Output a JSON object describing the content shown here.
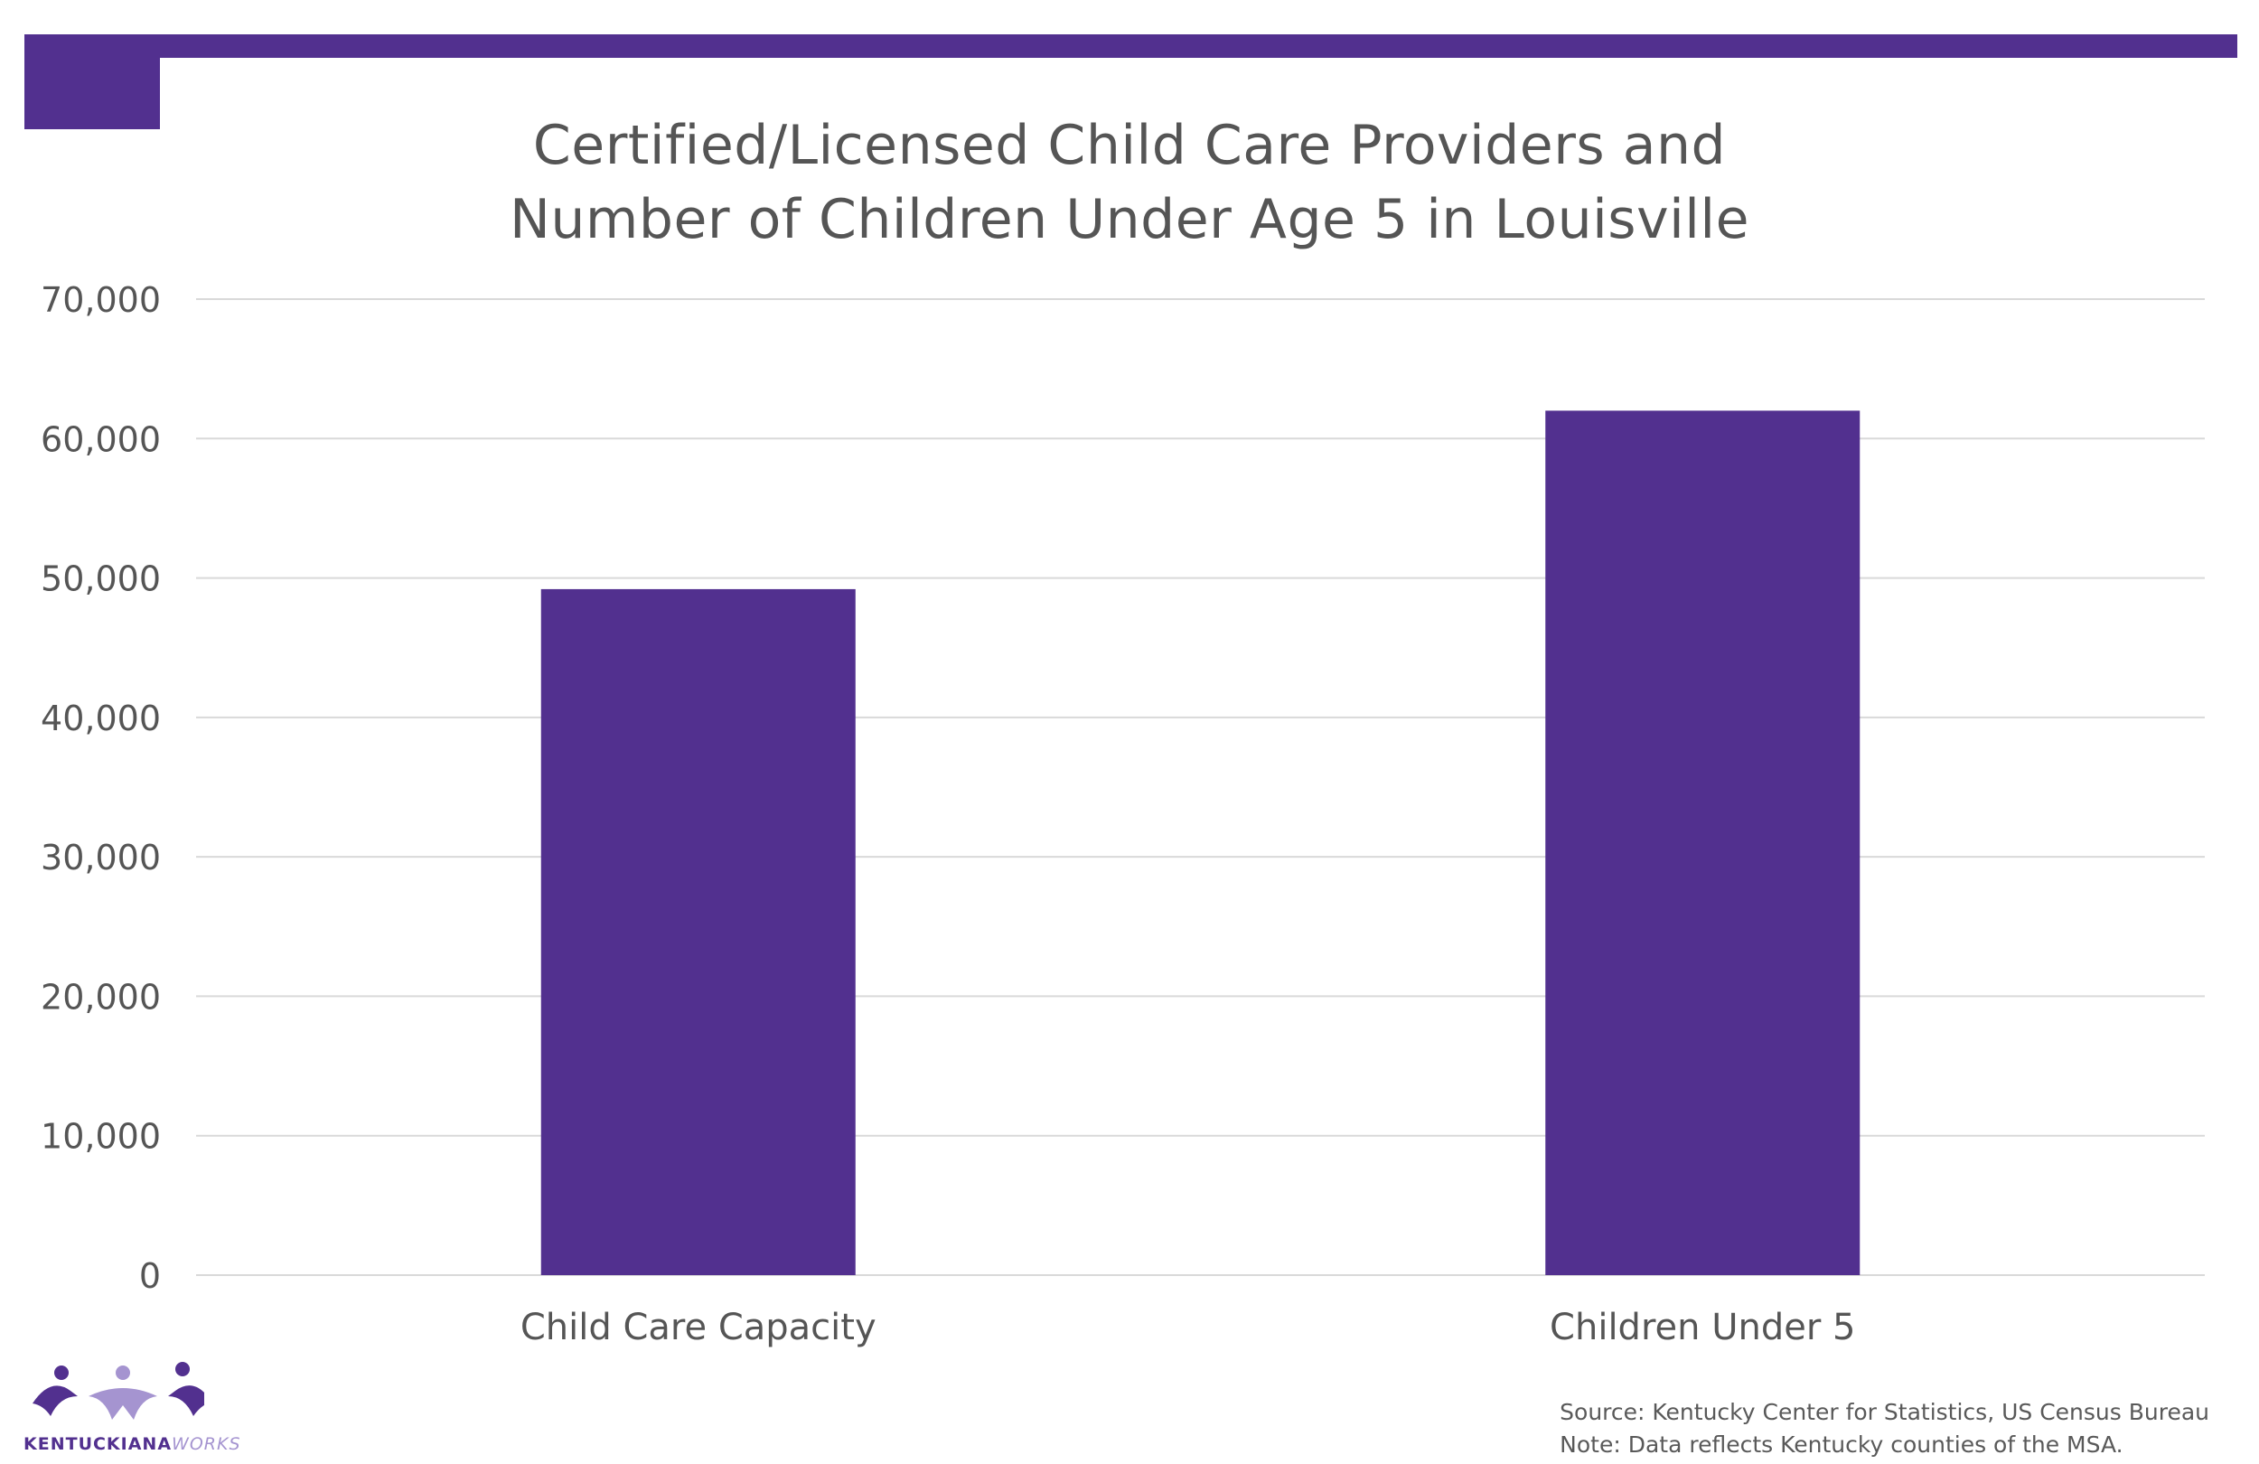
{
  "colors": {
    "accent": "#52308f",
    "text": "#555555",
    "grid": "#d9d9d9",
    "logo_light": "#a594d0"
  },
  "chart_data": {
    "type": "bar",
    "title_lines": [
      "Certified/Licensed Child Care Providers and",
      "Number of Children Under Age 5 in Louisville"
    ],
    "categories": [
      "Child Care Capacity",
      "Children Under 5"
    ],
    "values": [
      49200,
      62000
    ],
    "ylim": [
      0,
      70000
    ],
    "yticks": [
      0,
      10000,
      20000,
      30000,
      40000,
      50000,
      60000,
      70000
    ],
    "ytick_labels": [
      "0",
      "10,000",
      "20,000",
      "30,000",
      "40,000",
      "50,000",
      "60,000",
      "70,000"
    ],
    "grid": true,
    "legend": "none",
    "bar_color": "#52308f"
  },
  "footer": {
    "source": "Source: Kentucky Center for Statistics, US Census Bureau",
    "note": "Note: Data reflects Kentucky counties of the MSA."
  },
  "logo": {
    "text_part1": "KENTUCKIANA",
    "text_part2": "WORKS",
    "icon": "three-people-icon"
  }
}
